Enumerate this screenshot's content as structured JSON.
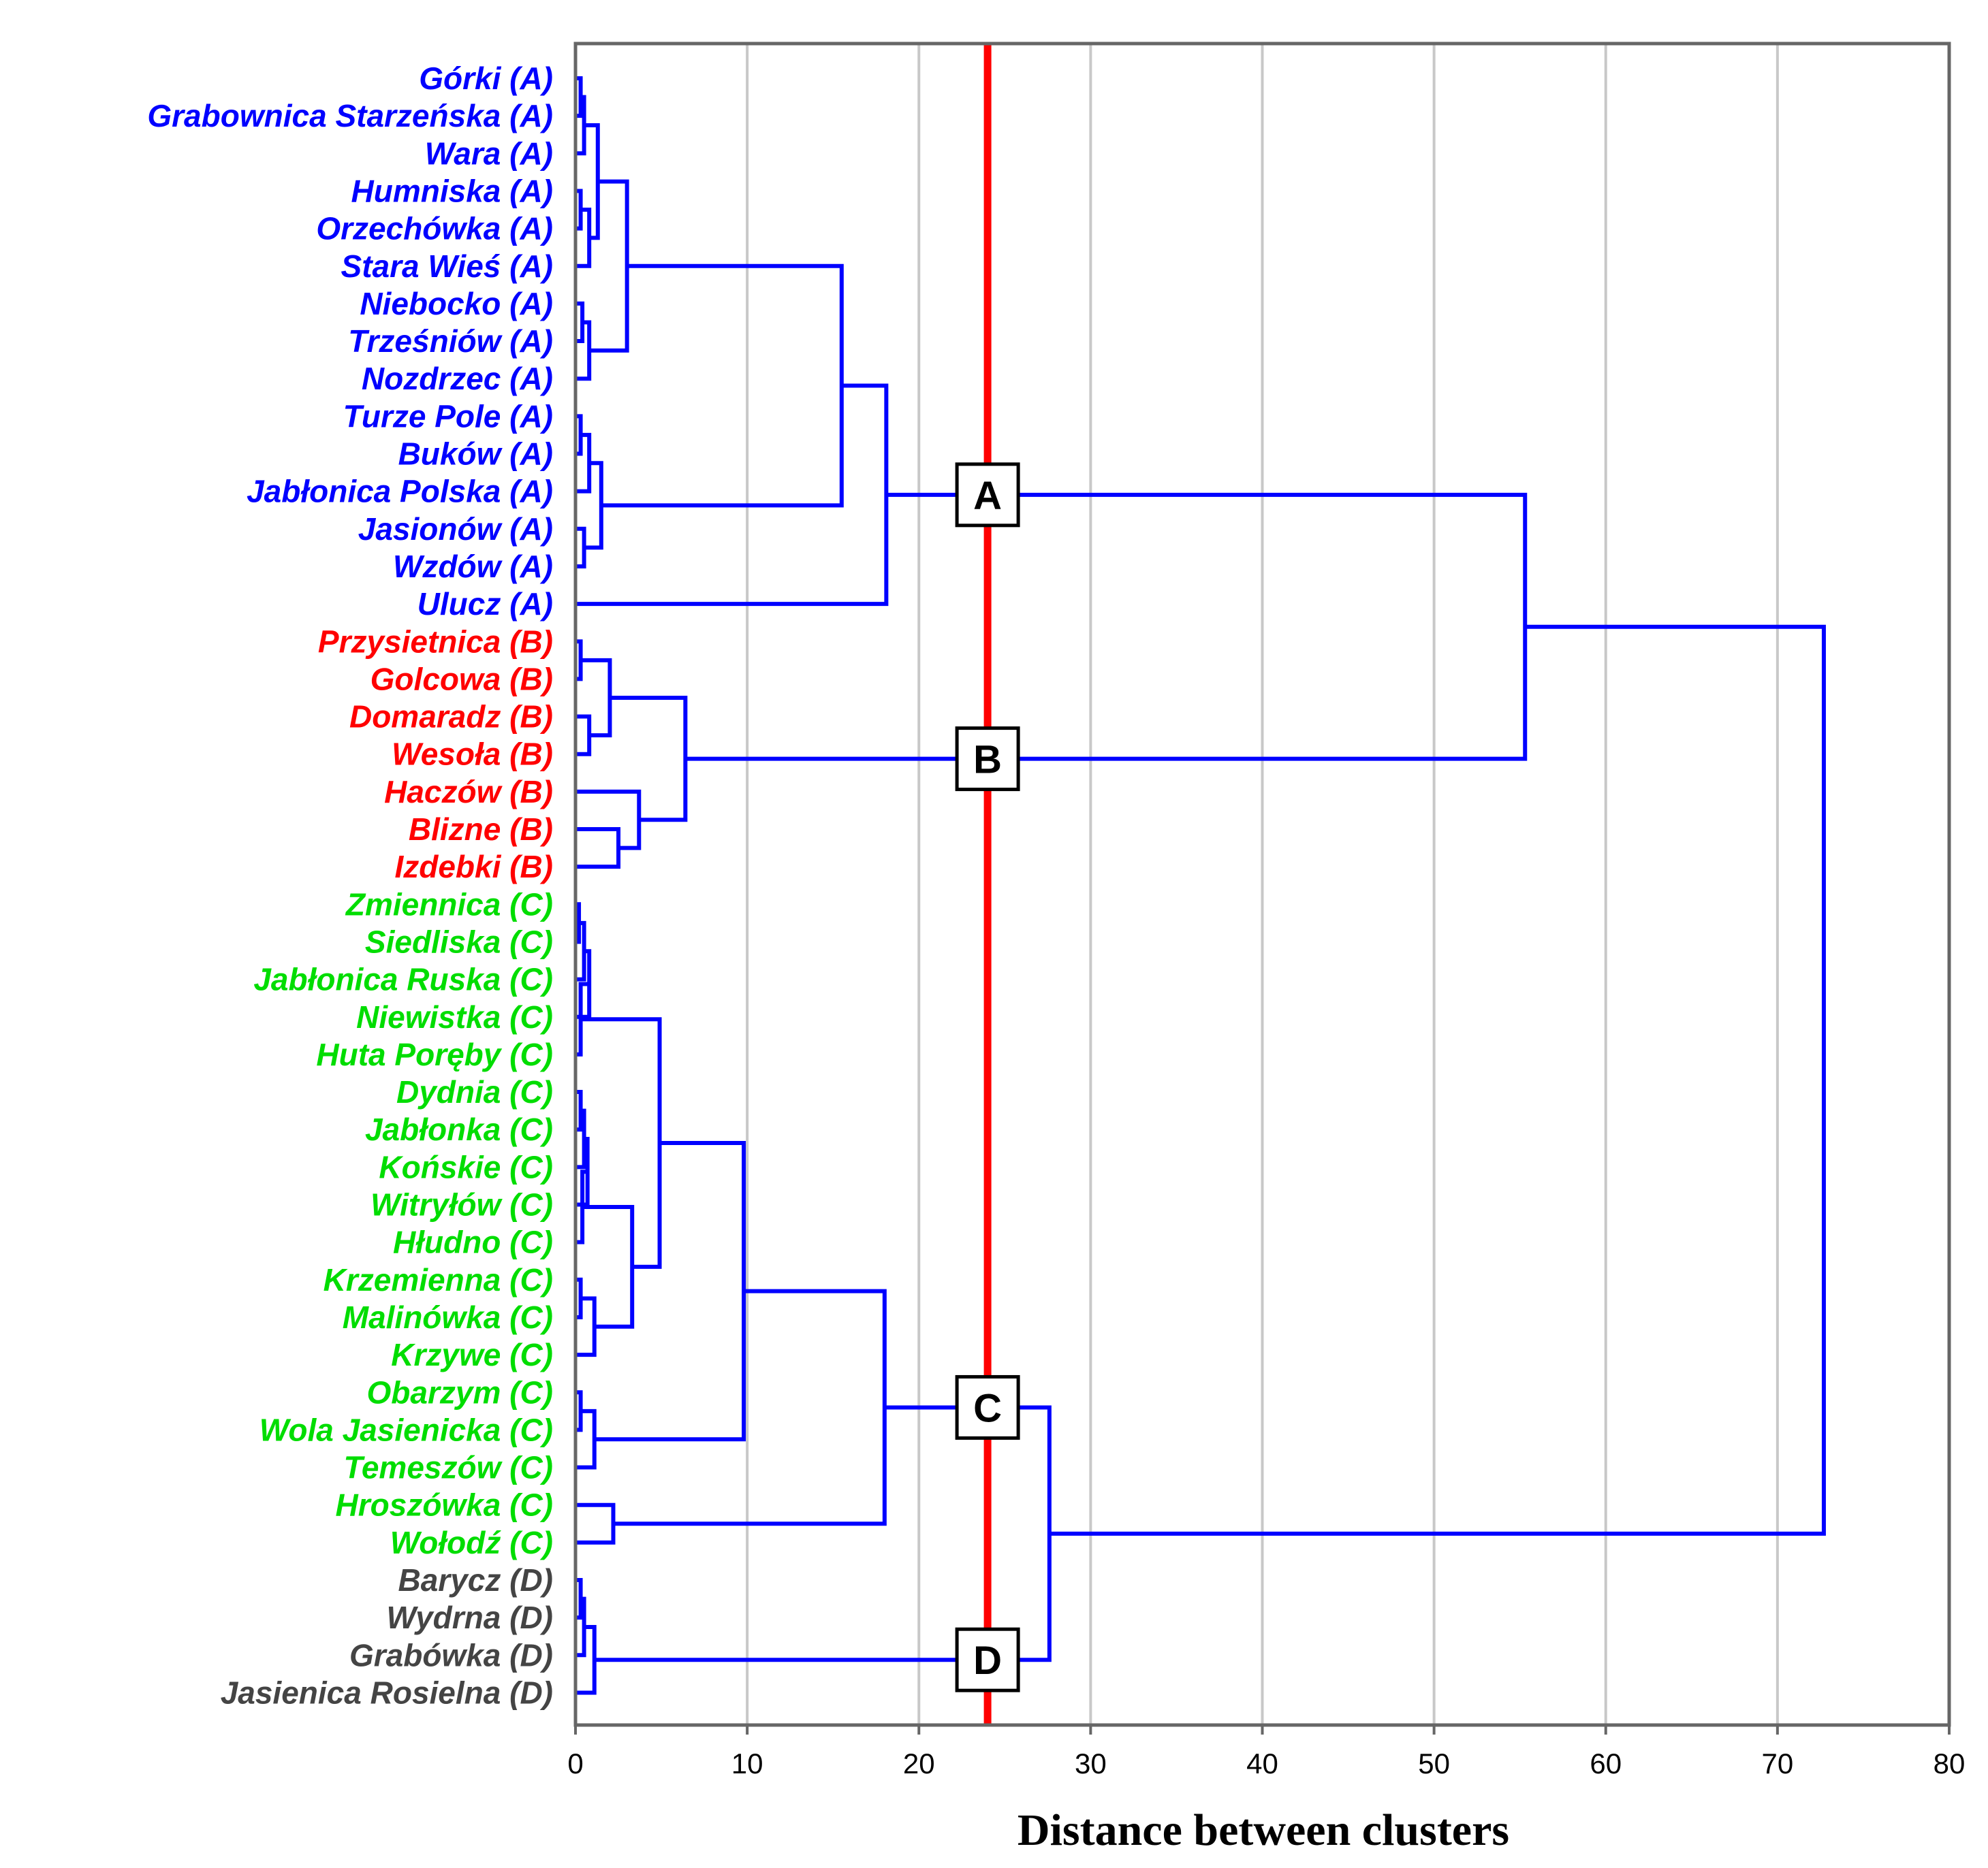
{
  "chart_data": {
    "type": "dendrogram",
    "xlabel": "Distance between clusters",
    "xlim": [
      0,
      80
    ],
    "xticks": [
      0,
      10,
      20,
      30,
      40,
      50,
      60,
      70,
      80
    ],
    "grid": true,
    "cut_line": {
      "distance": 24,
      "color": "#ff0000"
    },
    "group_colors": {
      "A": "#0000ff",
      "B": "#ff0000",
      "C": "#00dd00",
      "D": "#444444"
    },
    "link_color": "#0000ff",
    "leaves": [
      {
        "label": "Górki (A)",
        "group": "A"
      },
      {
        "label": "Grabownica Starzeńska (A)",
        "group": "A"
      },
      {
        "label": "Wara (A)",
        "group": "A"
      },
      {
        "label": "Humniska (A)",
        "group": "A"
      },
      {
        "label": "Orzechówka (A)",
        "group": "A"
      },
      {
        "label": "Stara Wieś (A)",
        "group": "A"
      },
      {
        "label": "Niebocko (A)",
        "group": "A"
      },
      {
        "label": "Trześniów (A)",
        "group": "A"
      },
      {
        "label": "Nozdrzec (A)",
        "group": "A"
      },
      {
        "label": "Turze Pole (A)",
        "group": "A"
      },
      {
        "label": "Buków (A)",
        "group": "A"
      },
      {
        "label": "Jabłonica Polska (A)",
        "group": "A"
      },
      {
        "label": "Jasionów (A)",
        "group": "A"
      },
      {
        "label": "Wzdów (A)",
        "group": "A"
      },
      {
        "label": "Ulucz (A)",
        "group": "A"
      },
      {
        "label": "Przysietnica (B)",
        "group": "B"
      },
      {
        "label": "Golcowa (B)",
        "group": "B"
      },
      {
        "label": "Domaradz (B)",
        "group": "B"
      },
      {
        "label": "Wesoła (B)",
        "group": "B"
      },
      {
        "label": "Haczów (B)",
        "group": "B"
      },
      {
        "label": "Blizne (B)",
        "group": "B"
      },
      {
        "label": "Izdebki (B)",
        "group": "B"
      },
      {
        "label": "Zmiennica (C)",
        "group": "C"
      },
      {
        "label": "Siedliska (C)",
        "group": "C"
      },
      {
        "label": "Jabłonica Ruska (C)",
        "group": "C"
      },
      {
        "label": "Niewistka (C)",
        "group": "C"
      },
      {
        "label": "Huta Poręby (C)",
        "group": "C"
      },
      {
        "label": "Dydnia (C)",
        "group": "C"
      },
      {
        "label": "Jabłonka (C)",
        "group": "C"
      },
      {
        "label": "Końskie (C)",
        "group": "C"
      },
      {
        "label": "Witryłów (C)",
        "group": "C"
      },
      {
        "label": "Hłudno (C)",
        "group": "C"
      },
      {
        "label": "Krzemienna (C)",
        "group": "C"
      },
      {
        "label": "Malinówka (C)",
        "group": "C"
      },
      {
        "label": "Krzywe (C)",
        "group": "C"
      },
      {
        "label": "Obarzym (C)",
        "group": "C"
      },
      {
        "label": "Wola Jasienicka (C)",
        "group": "C"
      },
      {
        "label": "Temeszów (C)",
        "group": "C"
      },
      {
        "label": "Hroszówka (C)",
        "group": "C"
      },
      {
        "label": "Wołodź (C)",
        "group": "C"
      },
      {
        "label": "Barycz (D)",
        "group": "D"
      },
      {
        "label": "Wydrna (D)",
        "group": "D"
      },
      {
        "label": "Grabówka (D)",
        "group": "D"
      },
      {
        "label": "Jasienica Rosielna (D)",
        "group": "D"
      }
    ],
    "merges": [
      {
        "id": "m1",
        "a": 0,
        "b": 1,
        "height": 0.3
      },
      {
        "id": "m2",
        "a": "m1",
        "b": 2,
        "height": 0.5
      },
      {
        "id": "m3",
        "a": 3,
        "b": 4,
        "height": 0.3
      },
      {
        "id": "m4",
        "a": "m3",
        "b": 5,
        "height": 0.8
      },
      {
        "id": "m5",
        "a": "m2",
        "b": "m4",
        "height": 1.3
      },
      {
        "id": "m6",
        "a": 6,
        "b": 7,
        "height": 0.4
      },
      {
        "id": "m7",
        "a": "m6",
        "b": 8,
        "height": 0.8
      },
      {
        "id": "m8",
        "a": "m5",
        "b": "m7",
        "height": 3.0
      },
      {
        "id": "m9",
        "a": 9,
        "b": 10,
        "height": 0.3
      },
      {
        "id": "m10",
        "a": "m9",
        "b": 11,
        "height": 0.8
      },
      {
        "id": "m11",
        "a": 12,
        "b": 13,
        "height": 0.5
      },
      {
        "id": "m12",
        "a": "m10",
        "b": "m11",
        "height": 1.5
      },
      {
        "id": "m13",
        "a": "m8",
        "b": "m12",
        "height": 15.5
      },
      {
        "id": "m14",
        "a": "m13",
        "b": 14,
        "height": 18.1
      },
      {
        "id": "m15",
        "a": 15,
        "b": 16,
        "height": 0.3
      },
      {
        "id": "m16",
        "a": 17,
        "b": 18,
        "height": 0.8
      },
      {
        "id": "m17",
        "a": "m15",
        "b": "m16",
        "height": 2.0
      },
      {
        "id": "m18",
        "a": 20,
        "b": 21,
        "height": 2.5
      },
      {
        "id": "m19",
        "a": 19,
        "b": "m18",
        "height": 3.7
      },
      {
        "id": "m20",
        "a": "m17",
        "b": "m19",
        "height": 6.4
      },
      {
        "id": "m21",
        "a": 22,
        "b": 23,
        "height": 0.2
      },
      {
        "id": "m22",
        "a": "m21",
        "b": 24,
        "height": 0.5
      },
      {
        "id": "m23",
        "a": "m22",
        "b": 25,
        "height": 0.8
      },
      {
        "id": "m24",
        "a": "m23",
        "b": 26,
        "height": 0.3
      },
      {
        "id": "m25",
        "a": 27,
        "b": 28,
        "height": 0.3
      },
      {
        "id": "m26",
        "a": "m25",
        "b": 29,
        "height": 0.5
      },
      {
        "id": "m27",
        "a": "m26",
        "b": 30,
        "height": 0.7
      },
      {
        "id": "m28",
        "a": "m27",
        "b": 31,
        "height": 0.4
      },
      {
        "id": "m29",
        "a": 32,
        "b": 33,
        "height": 0.3
      },
      {
        "id": "m30",
        "a": "m29",
        "b": 34,
        "height": 1.1
      },
      {
        "id": "m31",
        "a": "m28",
        "b": "m30",
        "height": 3.3
      },
      {
        "id": "m32",
        "a": "m24",
        "b": "m31",
        "height": 4.9
      },
      {
        "id": "m33",
        "a": 35,
        "b": 36,
        "height": 0.3
      },
      {
        "id": "m34",
        "a": "m33",
        "b": 37,
        "height": 1.1
      },
      {
        "id": "m35",
        "a": "m32",
        "b": "m34",
        "height": 9.8
      },
      {
        "id": "m36",
        "a": 38,
        "b": 39,
        "height": 2.2
      },
      {
        "id": "m37",
        "a": "m35",
        "b": "m36",
        "height": 18.0
      },
      {
        "id": "m38",
        "a": 40,
        "b": 41,
        "height": 0.3
      },
      {
        "id": "m39",
        "a": "m38",
        "b": 42,
        "height": 0.5
      },
      {
        "id": "m40",
        "a": "m39",
        "b": 43,
        "height": 1.1
      },
      {
        "id": "m41",
        "a": "m37",
        "b": "m40",
        "height": 27.6
      },
      {
        "id": "m42",
        "a": "m14",
        "b": "m20",
        "height": 55.3
      },
      {
        "id": "m43",
        "a": "m42",
        "b": "m41",
        "height": 72.7
      }
    ],
    "cluster_markers": [
      {
        "label": "A",
        "node": "m14"
      },
      {
        "label": "B",
        "node": "m20"
      },
      {
        "label": "C",
        "node": "m37"
      },
      {
        "label": "D",
        "node": "m40"
      }
    ]
  }
}
